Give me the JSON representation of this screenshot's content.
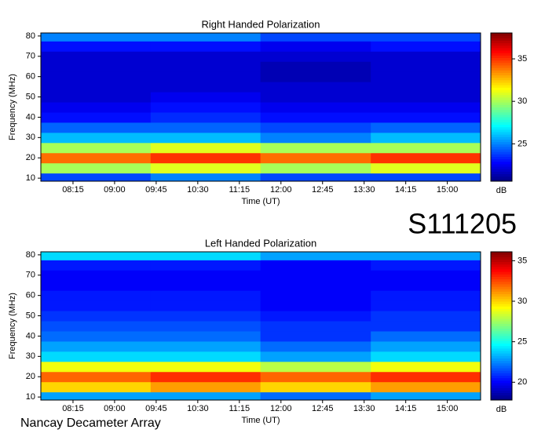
{
  "chart_data": [
    {
      "type": "heatmap",
      "title": "Right Handed Polarization",
      "xlabel": "Time (UT)",
      "ylabel": "Frequency (MHz)",
      "xlim": [
        7.67,
        15.6
      ],
      "ylim": [
        8.5,
        81.5
      ],
      "xticks": [
        {
          "value": 8.25,
          "label": "08:15"
        },
        {
          "value": 9,
          "label": "09:00"
        },
        {
          "value": 9.75,
          "label": "09:45"
        },
        {
          "value": 10.5,
          "label": "10:30"
        },
        {
          "value": 11.25,
          "label": "11:15"
        },
        {
          "value": 12,
          "label": "12:00"
        },
        {
          "value": 12.75,
          "label": "12:45"
        },
        {
          "value": 13.5,
          "label": "13:30"
        },
        {
          "value": 14.25,
          "label": "14:15"
        },
        {
          "value": 15,
          "label": "15:00"
        }
      ],
      "yticks": [
        10,
        20,
        30,
        40,
        50,
        60,
        70,
        80
      ],
      "xbins": [
        7.67,
        9.65,
        11.63,
        13.62,
        15.6
      ],
      "ybins": [
        8.5,
        12.5,
        17.5,
        22.5,
        27.5,
        32.5,
        37.5,
        42.5,
        47.5,
        52.5,
        57.5,
        62.5,
        67.5,
        72.5,
        77.5,
        81.5
      ],
      "z": [
        [
          24,
          25,
          24,
          24
        ],
        [
          30,
          31,
          30,
          31
        ],
        [
          34,
          35,
          34,
          35
        ],
        [
          30,
          31,
          30,
          30
        ],
        [
          26,
          26,
          25,
          26
        ],
        [
          24.5,
          24.5,
          24,
          24.5
        ],
        [
          23,
          23.5,
          23,
          23
        ],
        [
          22.5,
          23,
          22.5,
          22.5
        ],
        [
          22,
          22.5,
          22,
          22
        ],
        [
          22,
          22,
          22,
          22
        ],
        [
          22,
          22,
          21.5,
          22
        ],
        [
          22,
          22,
          21.5,
          22
        ],
        [
          22,
          22,
          22,
          22
        ],
        [
          23,
          23,
          22.5,
          23
        ],
        [
          25,
          25,
          24,
          24
        ]
      ],
      "colormap": "jet",
      "clim": [
        20.6,
        38.05
      ],
      "cticks": [
        25,
        30,
        35
      ],
      "clabel": "dB"
    },
    {
      "type": "heatmap",
      "title": "Left Handed Polarization",
      "xlabel": "Time (UT)",
      "ylabel": "Frequency (MHz)",
      "xlim": [
        7.67,
        15.6
      ],
      "ylim": [
        8.5,
        81.5
      ],
      "xticks": [
        {
          "value": 8.25,
          "label": "08:15"
        },
        {
          "value": 9,
          "label": "09:00"
        },
        {
          "value": 9.75,
          "label": "09:45"
        },
        {
          "value": 10.5,
          "label": "10:30"
        },
        {
          "value": 11.25,
          "label": "11:15"
        },
        {
          "value": 12,
          "label": "12:00"
        },
        {
          "value": 12.75,
          "label": "12:45"
        },
        {
          "value": 13.5,
          "label": "13:30"
        },
        {
          "value": 14.25,
          "label": "14:15"
        },
        {
          "value": 15,
          "label": "15:00"
        }
      ],
      "yticks": [
        10,
        20,
        30,
        40,
        50,
        60,
        70,
        80
      ],
      "xbins": [
        7.67,
        9.65,
        11.63,
        13.62,
        15.6
      ],
      "ybins": [
        8.5,
        12.5,
        17.5,
        22.5,
        27.5,
        32.5,
        37.5,
        42.5,
        47.5,
        52.5,
        57.5,
        62.5,
        67.5,
        72.5,
        77.5,
        81.5
      ],
      "z": [
        [
          23,
          23,
          22,
          23
        ],
        [
          30,
          31,
          30,
          31
        ],
        [
          32,
          33,
          32,
          33
        ],
        [
          29,
          29,
          28,
          29
        ],
        [
          24,
          24,
          23,
          24
        ],
        [
          23,
          23,
          22,
          23
        ],
        [
          22,
          22,
          21,
          22
        ],
        [
          21.5,
          21.5,
          21,
          21
        ],
        [
          21,
          21,
          20.5,
          21
        ],
        [
          20.5,
          20.5,
          20,
          20.5
        ],
        [
          20.5,
          20.5,
          20,
          20.5
        ],
        [
          20,
          20,
          20,
          20
        ],
        [
          20,
          20,
          20,
          20
        ],
        [
          20.5,
          20.5,
          20,
          20.5
        ],
        [
          24,
          24,
          23,
          23
        ]
      ],
      "colormap": "jet",
      "clim": [
        17.8,
        36.1
      ],
      "cticks": [
        20,
        25,
        30,
        35
      ],
      "clabel": "dB"
    }
  ],
  "label": "S111205",
  "footer": "Nancay Decameter Array"
}
